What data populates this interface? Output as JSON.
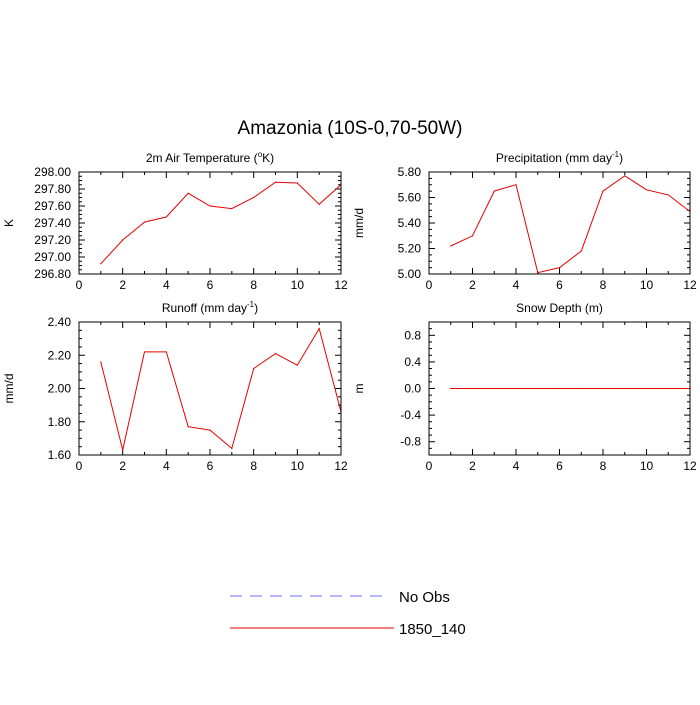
{
  "figure": {
    "title": "Amazonia (10S-0,70-50W)",
    "legend": [
      {
        "label": "No Obs",
        "color": "#6f6fff",
        "dash": true
      },
      {
        "label": "1850_140",
        "color": "#e60000",
        "dash": false
      }
    ]
  },
  "chart_data": [
    {
      "type": "line",
      "title": "2m Air Temperature (°K)",
      "title_main": "2m Air Temperature (",
      "title_sup": "o",
      "title_tail": "K)",
      "xlabel": "",
      "ylabel": "K",
      "xlim": [
        0,
        12
      ],
      "ylim": [
        296.8,
        298.0
      ],
      "xticks": [
        "0",
        "2",
        "4",
        "6",
        "8",
        "10",
        "12"
      ],
      "yticks": [
        "296.80",
        "297.00",
        "297.20",
        "297.40",
        "297.60",
        "297.80",
        "298.00"
      ],
      "ytick_values": [
        296.8,
        297.0,
        297.2,
        297.4,
        297.6,
        297.8,
        298.0
      ],
      "series": [
        {
          "name": "1850_140",
          "color": "#e60000",
          "x": [
            1,
            2,
            3,
            4,
            5,
            6,
            7,
            8,
            9,
            10,
            11,
            12
          ],
          "values": [
            296.92,
            297.2,
            297.41,
            297.47,
            297.75,
            297.6,
            297.57,
            297.7,
            297.88,
            297.87,
            297.62,
            297.85
          ]
        }
      ]
    },
    {
      "type": "line",
      "title": "Precipitation (mm day-1)",
      "title_main": "Precipitation (mm day",
      "title_sup": "-1",
      "title_tail": ")",
      "xlabel": "",
      "ylabel": "mm/d",
      "xlim": [
        0,
        12
      ],
      "ylim": [
        5.0,
        5.8
      ],
      "xticks": [
        "0",
        "2",
        "4",
        "6",
        "8",
        "10",
        "12"
      ],
      "yticks": [
        "5.00",
        "5.20",
        "5.40",
        "5.60",
        "5.80"
      ],
      "ytick_values": [
        5.0,
        5.2,
        5.4,
        5.6,
        5.8
      ],
      "series": [
        {
          "name": "1850_140",
          "color": "#e60000",
          "x": [
            1,
            2,
            3,
            4,
            5,
            6,
            7,
            8,
            9,
            10,
            11,
            12
          ],
          "values": [
            5.22,
            5.3,
            5.65,
            5.7,
            5.01,
            5.05,
            5.18,
            5.65,
            5.77,
            5.66,
            5.62,
            5.49
          ]
        }
      ]
    },
    {
      "type": "line",
      "title": "Runoff (mm day-1)",
      "title_main": "Runoff (mm day",
      "title_sup": "-1",
      "title_tail": ")",
      "xlabel": "",
      "ylabel": "mm/d",
      "xlim": [
        0,
        12
      ],
      "ylim": [
        1.6,
        2.4
      ],
      "xticks": [
        "0",
        "2",
        "4",
        "6",
        "8",
        "10",
        "12"
      ],
      "yticks": [
        "1.60",
        "1.80",
        "2.00",
        "2.20",
        "2.40"
      ],
      "ytick_values": [
        1.6,
        1.8,
        2.0,
        2.2,
        2.4
      ],
      "series": [
        {
          "name": "1850_140",
          "color": "#e60000",
          "x": [
            1,
            2,
            3,
            4,
            5,
            6,
            7,
            8,
            9,
            10,
            11,
            12
          ],
          "values": [
            2.16,
            1.63,
            2.22,
            2.22,
            1.77,
            1.75,
            1.64,
            2.12,
            2.21,
            2.14,
            2.36,
            1.86
          ]
        }
      ]
    },
    {
      "type": "line",
      "title": "Snow Depth (m)",
      "title_main": "Snow Depth (m)",
      "title_sup": "",
      "title_tail": "",
      "xlabel": "",
      "ylabel": "m",
      "xlim": [
        0,
        12
      ],
      "ylim": [
        -1.0,
        1.0
      ],
      "xticks": [
        "0",
        "2",
        "4",
        "6",
        "8",
        "10",
        "12"
      ],
      "yticks": [
        "-0.8",
        "-0.4",
        "0.0",
        "0.4",
        "0.8"
      ],
      "ytick_values": [
        -0.8,
        -0.4,
        0.0,
        0.4,
        0.8
      ],
      "series": [
        {
          "name": "1850_140",
          "color": "#e60000",
          "x": [
            1,
            2,
            3,
            4,
            5,
            6,
            7,
            8,
            9,
            10,
            11,
            12
          ],
          "values": [
            0,
            0,
            0,
            0,
            0,
            0,
            0,
            0,
            0,
            0,
            0,
            0
          ]
        }
      ]
    }
  ]
}
